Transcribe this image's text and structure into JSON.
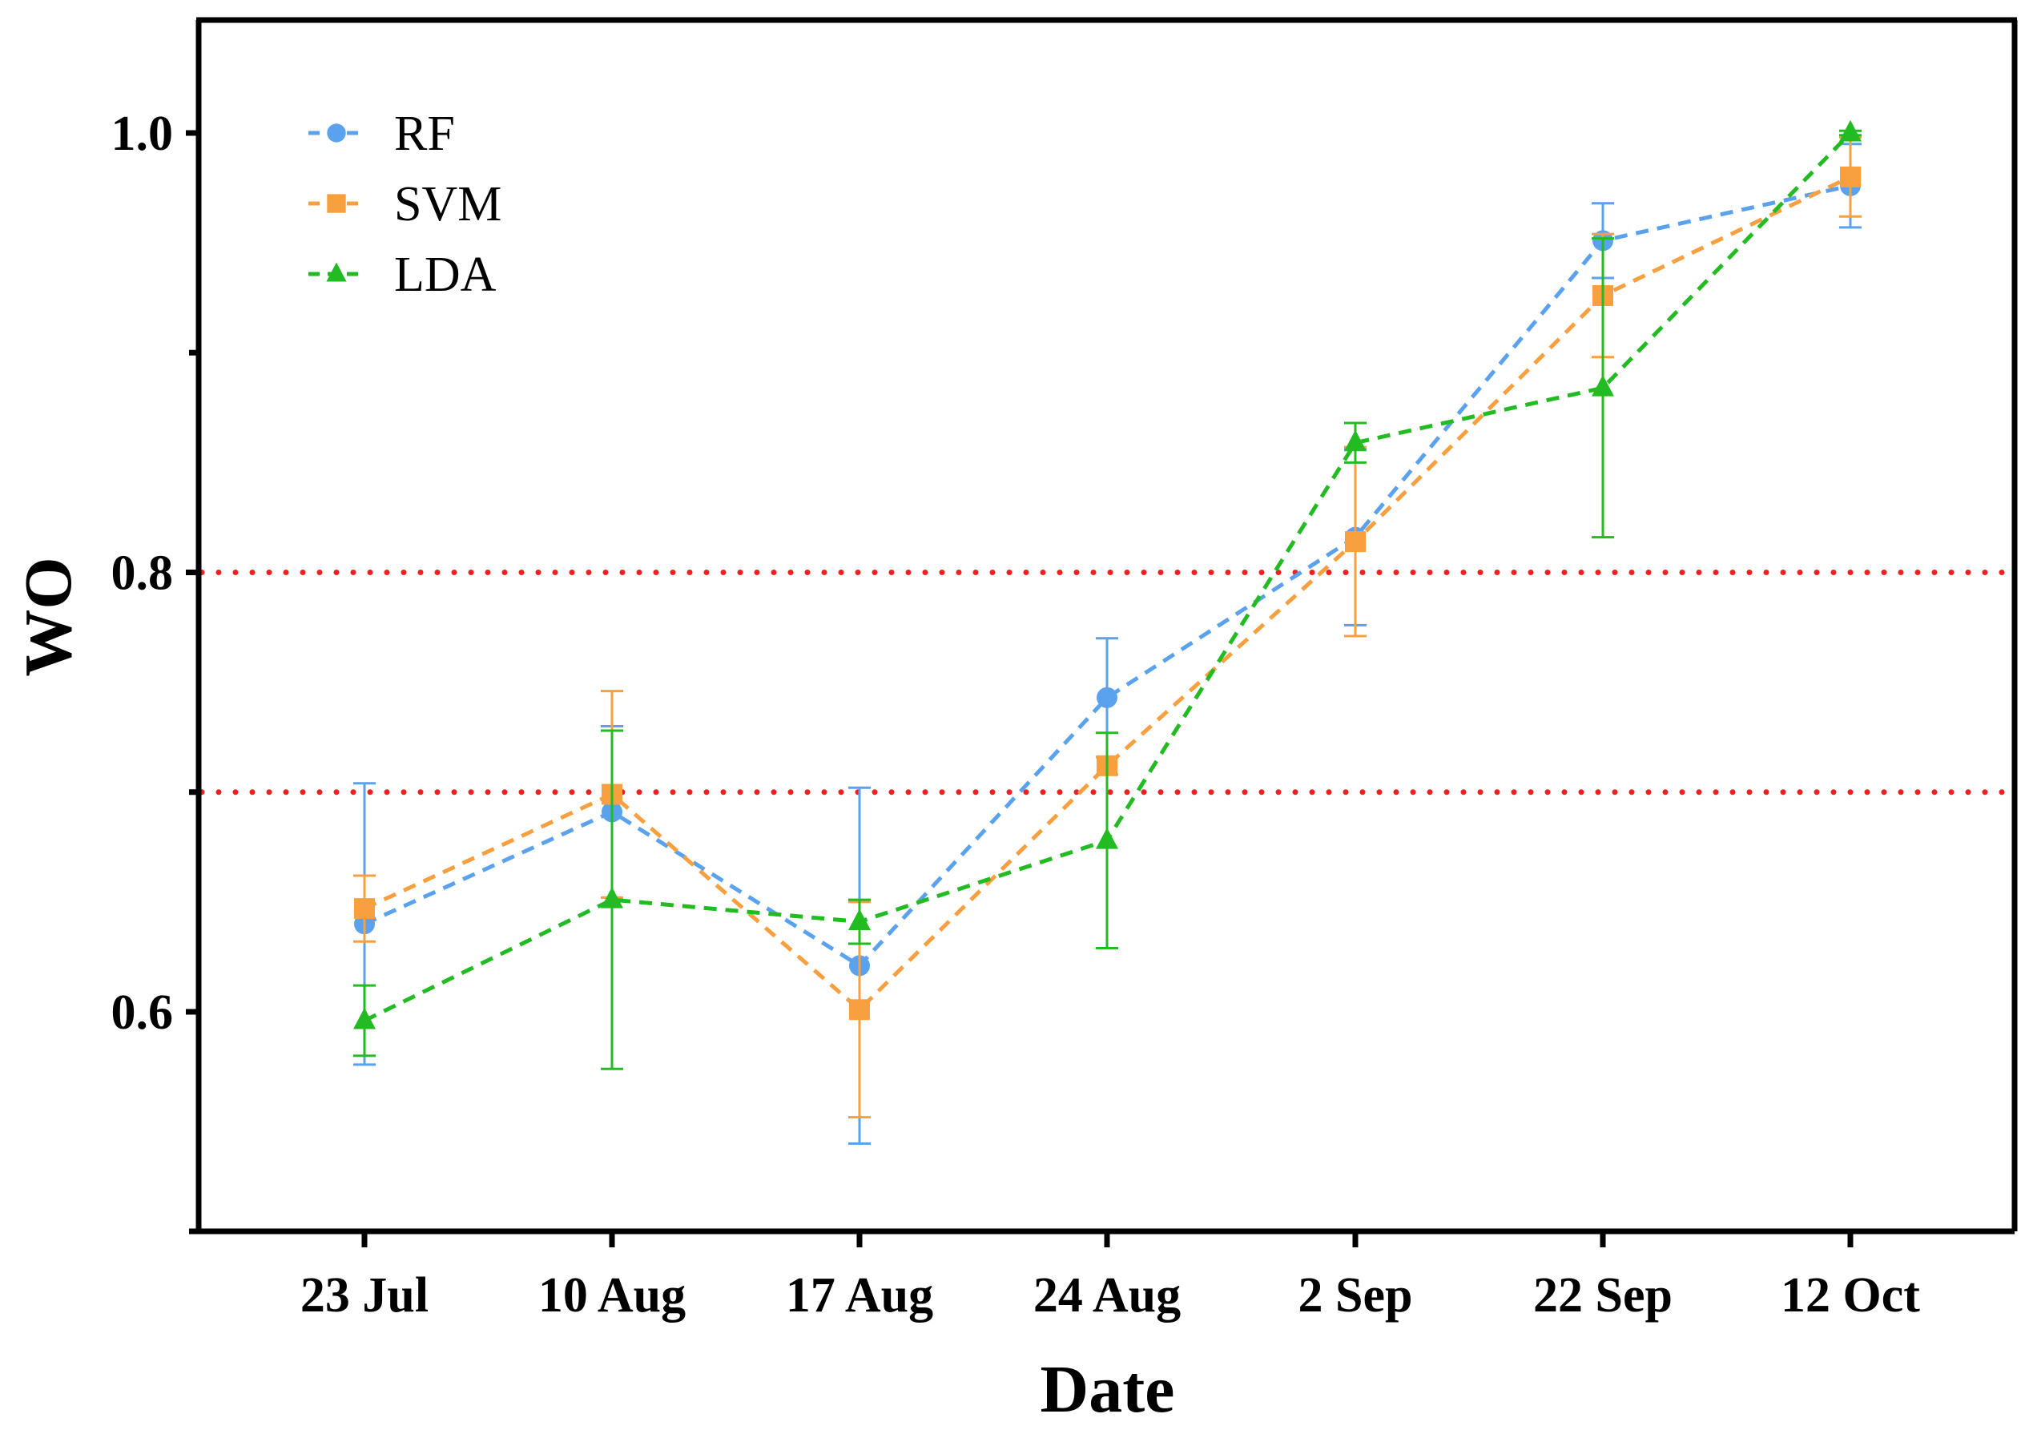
{
  "chart_data": {
    "type": "line",
    "xlabel": "Date",
    "ylabel": "WO",
    "categories": [
      "23 Jul",
      "10 Aug",
      "17 Aug",
      "24 Aug",
      "2 Sep",
      "22 Sep",
      "12 Oct"
    ],
    "ylim": [
      0.5,
      1.05
    ],
    "yticks": [
      0.6,
      0.8,
      1.0
    ],
    "ytick_labels": [
      "0.6",
      "0.8",
      "1.0"
    ],
    "yminor_ticks": [
      0.5,
      0.7,
      0.9
    ],
    "reference_lines": [
      {
        "y": 0.8,
        "color": "#f02020",
        "style": "dotted"
      },
      {
        "y": 0.7,
        "color": "#f02020",
        "style": "dotted"
      }
    ],
    "legend_position": "top-left",
    "series": [
      {
        "name": "RF",
        "color": "#5aa2ee",
        "marker": "circle",
        "values": [
          0.64,
          0.691,
          0.621,
          0.743,
          0.816,
          0.951,
          0.976
        ],
        "errors": [
          0.064,
          0.039,
          0.081,
          0.027,
          0.04,
          0.017,
          0.019
        ]
      },
      {
        "name": "SVM",
        "color": "#f8a040",
        "marker": "square",
        "values": [
          0.647,
          0.699,
          0.601,
          0.712,
          0.814,
          0.926,
          0.98
        ],
        "errors": [
          0.015,
          0.047,
          0.049,
          0.004,
          0.043,
          0.028,
          0.018
        ]
      },
      {
        "name": "LDA",
        "color": "#22bb22",
        "marker": "triangle",
        "values": [
          0.596,
          0.651,
          0.641,
          0.678,
          0.859,
          0.884,
          1.0
        ],
        "errors": [
          0.016,
          0.077,
          0.01,
          0.049,
          0.009,
          0.068,
          0.001
        ]
      }
    ]
  }
}
